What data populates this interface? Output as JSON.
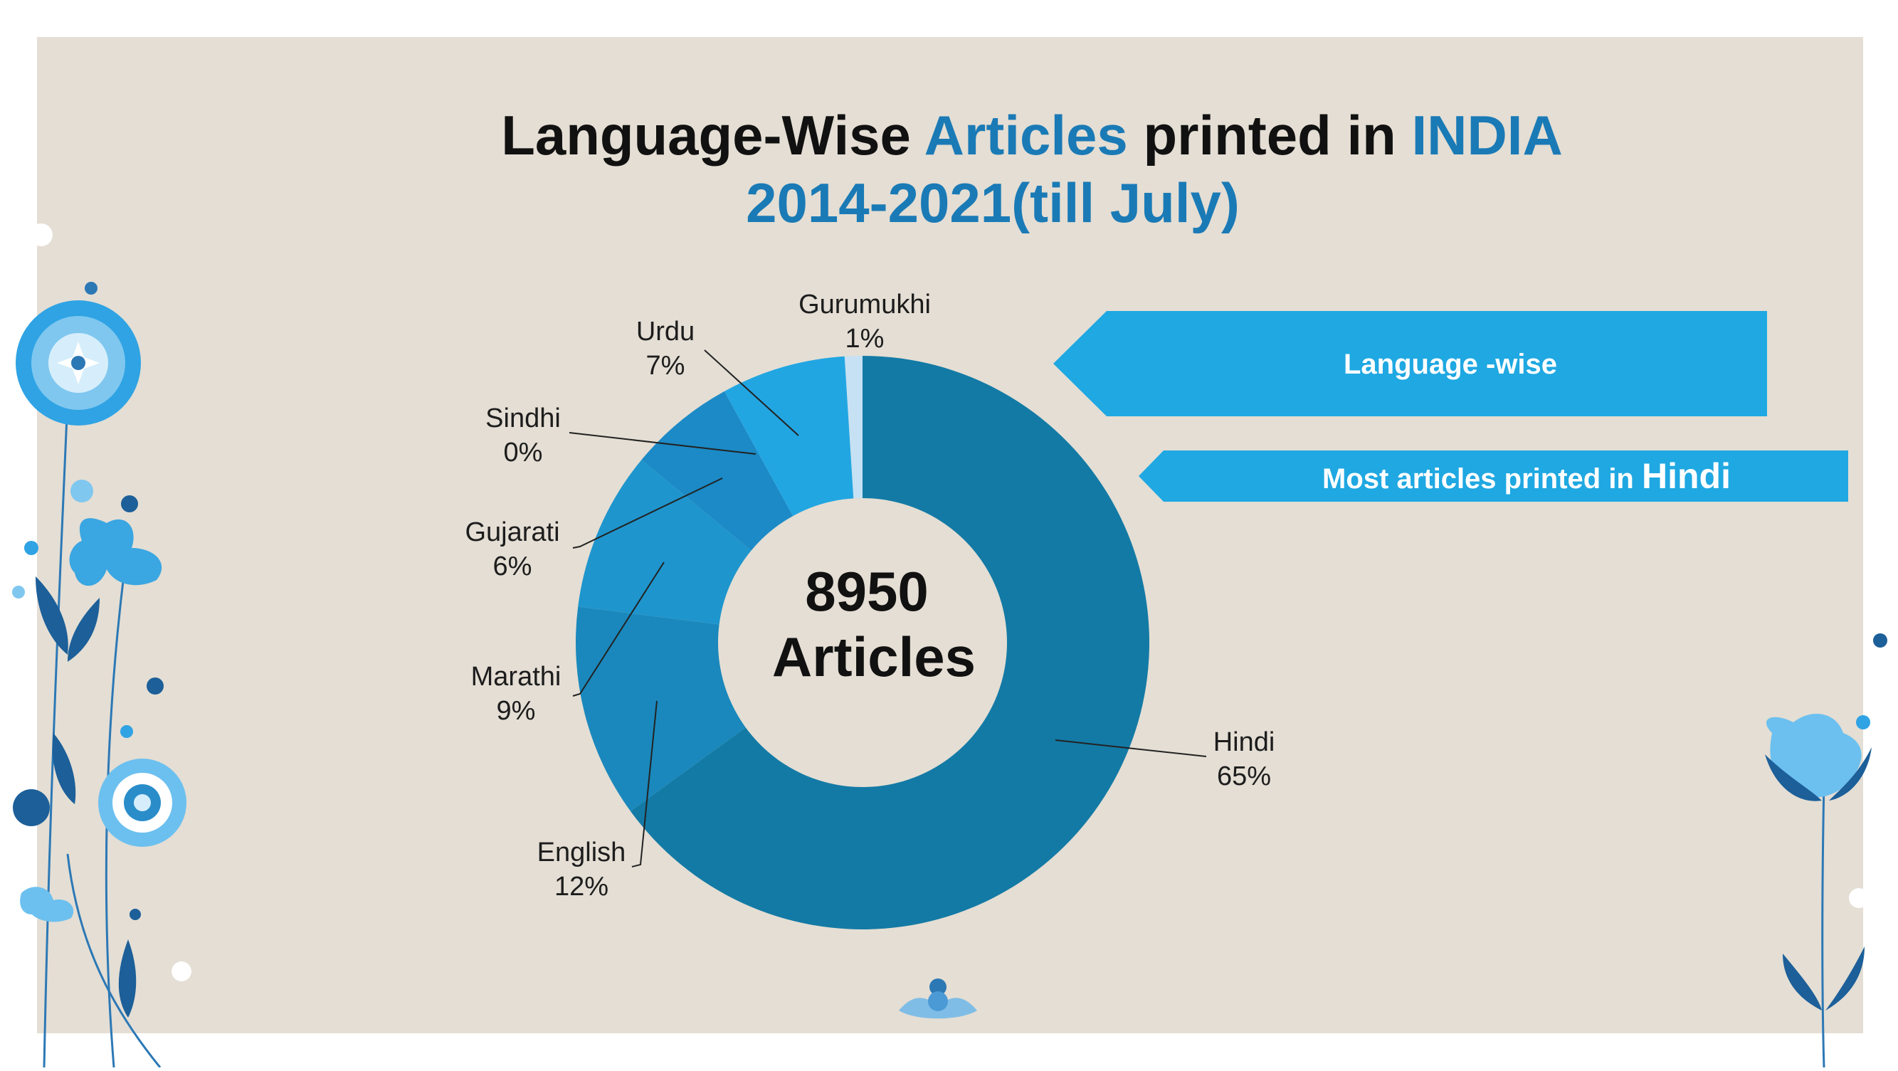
{
  "slide": {
    "title_part1": "Language-Wise ",
    "title_part2": "Articles",
    "title_part3": " printed in ",
    "title_part4": "INDIA",
    "subtitle": "2014-2021(till July)",
    "center_number": "8950",
    "center_label": "Articles",
    "banner1": "Language -wise",
    "banner2_prefix": "Most articles printed in ",
    "banner2_emph": "Hindi",
    "colors": {
      "background_panel": "#e4ded4",
      "title_black": "#111111",
      "title_blue": "#1a7ab6",
      "banner": "#1fa8e2",
      "banner_text": "#ffffff"
    }
  },
  "chart_data": {
    "type": "pie",
    "style": "donut",
    "total": 8950,
    "slices": [
      {
        "name": "Gurumukhi",
        "percent": "1%",
        "value": 1,
        "color": "#c6e1f3"
      },
      {
        "name": "Hindi",
        "percent": "65%",
        "value": 65,
        "color": "#137aa5"
      },
      {
        "name": "English",
        "percent": "12%",
        "value": 12,
        "color": "#1a88bc"
      },
      {
        "name": "Marathi",
        "percent": "9%",
        "value": 9,
        "color": "#1e95cd"
      },
      {
        "name": "Gujarati",
        "percent": "6%",
        "value": 6,
        "color": "#1b8ac6"
      },
      {
        "name": "Sindhi",
        "percent": "0%",
        "value": 0,
        "color": "#1a8ac8"
      },
      {
        "name": "Urdu",
        "percent": "7%",
        "value": 7,
        "color": "#22a6e2"
      }
    ]
  }
}
